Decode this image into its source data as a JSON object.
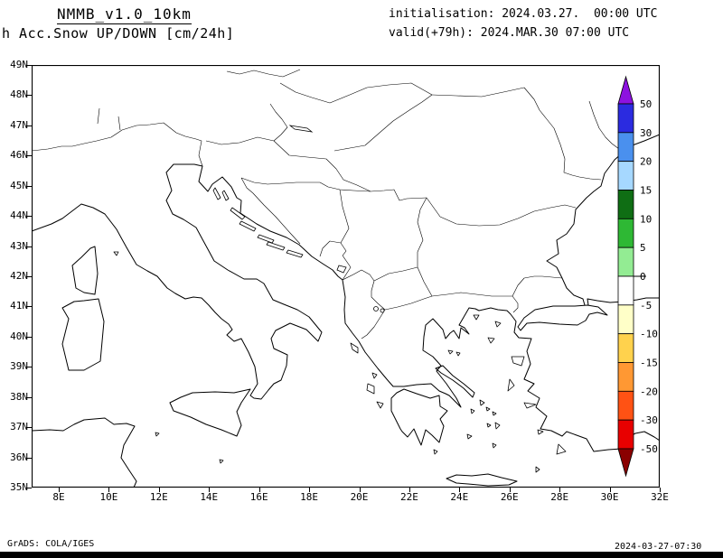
{
  "header": {
    "title": "NMMB_v1.0_10km",
    "subtitle": "h Acc.Snow UP/DOWN [cm/24h]",
    "init": "initialisation: 2024.03.27.  00:00 UTC",
    "valid": "valid(+79h): 2024.MAR.30 07:00 UTC"
  },
  "map": {
    "lat_labels": [
      "49N",
      "48N",
      "47N",
      "46N",
      "45N",
      "44N",
      "43N",
      "42N",
      "41N",
      "40N",
      "39N",
      "38N",
      "37N",
      "36N",
      "35N"
    ],
    "lon_labels": [
      "8E",
      "10E",
      "12E",
      "14E",
      "16E",
      "18E",
      "20E",
      "22E",
      "24E",
      "26E",
      "28E",
      "30E",
      "32E"
    ]
  },
  "colorbar": {
    "tick_labels": [
      "50",
      "30",
      "20",
      "15",
      "10",
      "5",
      "0",
      "-5",
      "-10",
      "-15",
      "-20",
      "-30",
      "-50"
    ],
    "segment_colors": [
      "#2b2be0",
      "#4a90ee",
      "#a6d8ff",
      "#0f6e14",
      "#2eb834",
      "#93ec93",
      "#ffffff",
      "#ffffc8",
      "#ffd24d",
      "#ff9833",
      "#ff5214",
      "#e80000"
    ],
    "arrow_top_color": "#8d12e0",
    "arrow_bottom_color": "#8a0000"
  },
  "footer": {
    "left": "GrADS: COLA/IGES",
    "right": "2024-03-27-07:30"
  }
}
